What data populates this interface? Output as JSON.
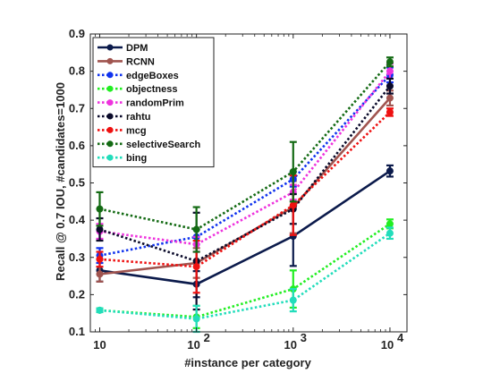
{
  "chart_data": {
    "type": "line",
    "title": "",
    "xlabel": "#instance per category",
    "ylabel": "Recall @ 0.7 IOU, #candidates=1000",
    "xscale": "log",
    "x": [
      10,
      100,
      1000,
      10000
    ],
    "x_tick_labels": [
      {
        "base": "10",
        "exp": ""
      },
      {
        "base": "10",
        "exp": "2"
      },
      {
        "base": "10",
        "exp": "3"
      },
      {
        "base": "10",
        "exp": "4"
      }
    ],
    "xlim": [
      8,
      15000
    ],
    "ylim": [
      0.1,
      0.9
    ],
    "yticks": [
      "0.1",
      "0.2",
      "0.3",
      "0.4",
      "0.5",
      "0.6",
      "0.7",
      "0.8",
      "0.9"
    ],
    "grid": false,
    "legend_position": "top-left",
    "series": [
      {
        "name": "DPM",
        "color": "#0b1a4b",
        "style": "solid",
        "values": [
          0.265,
          0.228,
          0.357,
          0.532
        ],
        "errors": [
          0.03,
          0.035,
          0.08,
          0.015
        ]
      },
      {
        "name": "RCNN",
        "color": "#a0544f",
        "style": "solid",
        "values": [
          0.255,
          0.285,
          0.435,
          0.728
        ],
        "errors": [
          0.02,
          0.04,
          0.07,
          0.02
        ]
      },
      {
        "name": "edgeBoxes",
        "color": "#1033ee",
        "style": "dotted",
        "values": [
          0.305,
          0.355,
          0.51,
          0.79
        ],
        "errors": [
          0.02,
          0.02,
          0.02,
          0.02
        ]
      },
      {
        "name": "objectness",
        "color": "#22ee22",
        "style": "dotted",
        "values": [
          0.158,
          0.14,
          0.215,
          0.39
        ],
        "errors": [
          0.005,
          0.03,
          0.05,
          0.012
        ]
      },
      {
        "name": "randomPrim",
        "color": "#ee33dd",
        "style": "dotted",
        "values": [
          0.37,
          0.335,
          0.475,
          0.8
        ],
        "errors": [
          0.02,
          0.02,
          0.02,
          0.02
        ]
      },
      {
        "name": "rahtu",
        "color": "#0a0a2a",
        "style": "dotted",
        "values": [
          0.375,
          0.29,
          0.43,
          0.76
        ],
        "errors": [
          0.03,
          0.13,
          0.04,
          0.02
        ]
      },
      {
        "name": "mcg",
        "color": "#ee1111",
        "style": "dotted",
        "values": [
          0.295,
          0.275,
          0.44,
          0.69
        ],
        "errors": [
          0.02,
          0.07,
          0.08,
          0.01
        ]
      },
      {
        "name": "selectiveSearch",
        "color": "#136a13",
        "style": "dotted",
        "values": [
          0.43,
          0.375,
          0.53,
          0.825
        ],
        "errors": [
          0.045,
          0.06,
          0.08,
          0.012
        ]
      },
      {
        "name": "bing",
        "color": "#22ddbb",
        "style": "dotted",
        "values": [
          0.158,
          0.135,
          0.185,
          0.365
        ],
        "errors": [
          0.005,
          0.035,
          0.03,
          0.015
        ]
      }
    ]
  }
}
